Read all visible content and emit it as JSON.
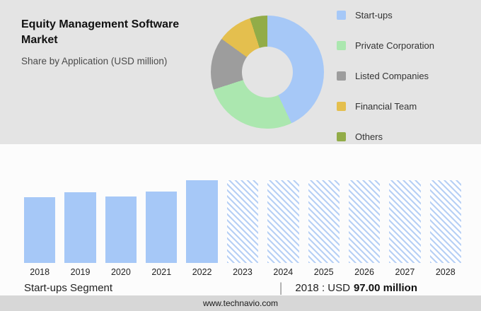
{
  "header": {
    "title": "Equity Management Software Market",
    "subtitle": "Share by Application (USD million)"
  },
  "chart_data": [
    {
      "type": "pie",
      "donut": true,
      "title": "Share by Application (USD million)",
      "labels": [
        "Start-ups",
        "Private Corporation",
        "Listed Companies",
        "Financial Team",
        "Others"
      ],
      "values": [
        43,
        27,
        15,
        10,
        5
      ],
      "unit": "percent, estimated from arc angles",
      "colors": [
        "#a6c8f7",
        "#abe7af",
        "#9d9d9d",
        "#e4bf4e",
        "#92ac48"
      ],
      "legend_position": "right"
    },
    {
      "type": "bar",
      "title": "Start-ups Segment (USD million)",
      "categories": [
        "2018",
        "2019",
        "2020",
        "2021",
        "2022",
        "2023",
        "2024",
        "2025",
        "2026",
        "2027",
        "2028"
      ],
      "values": [
        97,
        104,
        98,
        105,
        122,
        122,
        122,
        122,
        122,
        122,
        122
      ],
      "bar_styles": [
        "solid",
        "solid",
        "solid",
        "solid",
        "solid",
        "hatched",
        "hatched",
        "hatched",
        "hatched",
        "hatched",
        "hatched"
      ],
      "note": "2018 labeled USD 97.00 million; other values estimated from bar heights; 2023-2028 are hatched forecast bars",
      "bar_color": "#a6c8f7",
      "hatch_color": "#b7d0f5",
      "ylim": [
        0,
        135
      ],
      "xlabel": "",
      "ylabel": "",
      "grid": false
    }
  ],
  "caption": {
    "segment_label": "Start-ups Segment",
    "separator": "|",
    "value_prefix": "2018 : USD",
    "value_bold": "97.00 million"
  },
  "footer": {
    "url": "www.technavio.com"
  }
}
